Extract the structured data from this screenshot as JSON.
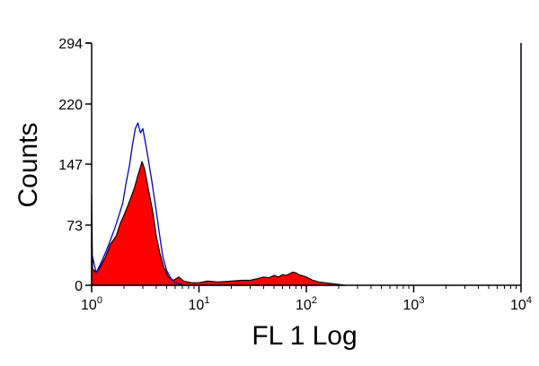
{
  "chart_data": {
    "type": "area",
    "xlabel": "FL 1 Log",
    "ylabel": "Counts",
    "x_scale": "log",
    "xlim": [
      1,
      10000
    ],
    "ylim": [
      0,
      294
    ],
    "x_ticks": [
      {
        "value": 1,
        "base": "10",
        "exp": "0"
      },
      {
        "value": 10,
        "base": "10",
        "exp": "1"
      },
      {
        "value": 100,
        "base": "10",
        "exp": "2"
      },
      {
        "value": 1000,
        "base": "10",
        "exp": "3"
      },
      {
        "value": 10000,
        "base": "10",
        "exp": "4"
      }
    ],
    "y_ticks": [
      {
        "value": 0,
        "label": "0"
      },
      {
        "value": 73,
        "label": "73"
      },
      {
        "value": 147,
        "label": "147"
      },
      {
        "value": 220,
        "label": "220"
      },
      {
        "value": 294,
        "label": "294"
      }
    ],
    "grid": false,
    "legend": "none",
    "series": [
      {
        "style": "filled",
        "color": "#ff0000",
        "outline": "#000000",
        "points": [
          [
            1.0,
            110
          ],
          [
            1.02,
            20
          ],
          [
            1.1,
            15
          ],
          [
            1.2,
            22
          ],
          [
            1.35,
            35
          ],
          [
            1.5,
            50
          ],
          [
            1.7,
            60
          ],
          [
            1.85,
            75
          ],
          [
            2.0,
            85
          ],
          [
            2.15,
            95
          ],
          [
            2.3,
            105
          ],
          [
            2.5,
            118
          ],
          [
            2.65,
            130
          ],
          [
            2.8,
            140
          ],
          [
            2.95,
            150
          ],
          [
            3.1,
            142
          ],
          [
            3.25,
            128
          ],
          [
            3.45,
            110
          ],
          [
            3.7,
            90
          ],
          [
            4.0,
            60
          ],
          [
            4.3,
            40
          ],
          [
            4.7,
            22
          ],
          [
            5.2,
            10
          ],
          [
            5.8,
            6
          ],
          [
            6.5,
            10
          ],
          [
            7.2,
            5
          ],
          [
            8.5,
            3
          ],
          [
            10,
            3
          ],
          [
            12,
            5
          ],
          [
            15,
            4
          ],
          [
            20,
            5
          ],
          [
            25,
            6
          ],
          [
            30,
            6
          ],
          [
            35,
            8
          ],
          [
            40,
            10
          ],
          [
            45,
            9
          ],
          [
            50,
            12
          ],
          [
            55,
            10
          ],
          [
            60,
            13
          ],
          [
            65,
            12
          ],
          [
            70,
            14
          ],
          [
            75,
            16
          ],
          [
            80,
            15
          ],
          [
            85,
            13
          ],
          [
            90,
            12
          ],
          [
            100,
            10
          ],
          [
            115,
            6
          ],
          [
            130,
            4
          ],
          [
            150,
            3
          ],
          [
            175,
            2
          ],
          [
            200,
            1
          ],
          [
            230,
            0
          ]
        ]
      },
      {
        "style": "line",
        "color": "#0000cc",
        "points": [
          [
            1.0,
            40
          ],
          [
            1.1,
            15
          ],
          [
            1.2,
            25
          ],
          [
            1.35,
            40
          ],
          [
            1.5,
            55
          ],
          [
            1.65,
            70
          ],
          [
            1.8,
            85
          ],
          [
            1.95,
            100
          ],
          [
            2.1,
            125
          ],
          [
            2.25,
            145
          ],
          [
            2.4,
            170
          ],
          [
            2.55,
            190
          ],
          [
            2.7,
            197
          ],
          [
            2.85,
            185
          ],
          [
            3.0,
            190
          ],
          [
            3.2,
            170
          ],
          [
            3.4,
            150
          ],
          [
            3.65,
            125
          ],
          [
            3.95,
            95
          ],
          [
            4.25,
            65
          ],
          [
            4.6,
            35
          ],
          [
            5.0,
            18
          ],
          [
            5.5,
            8
          ],
          [
            6.0,
            3
          ],
          [
            7.0,
            1
          ]
        ]
      }
    ]
  }
}
